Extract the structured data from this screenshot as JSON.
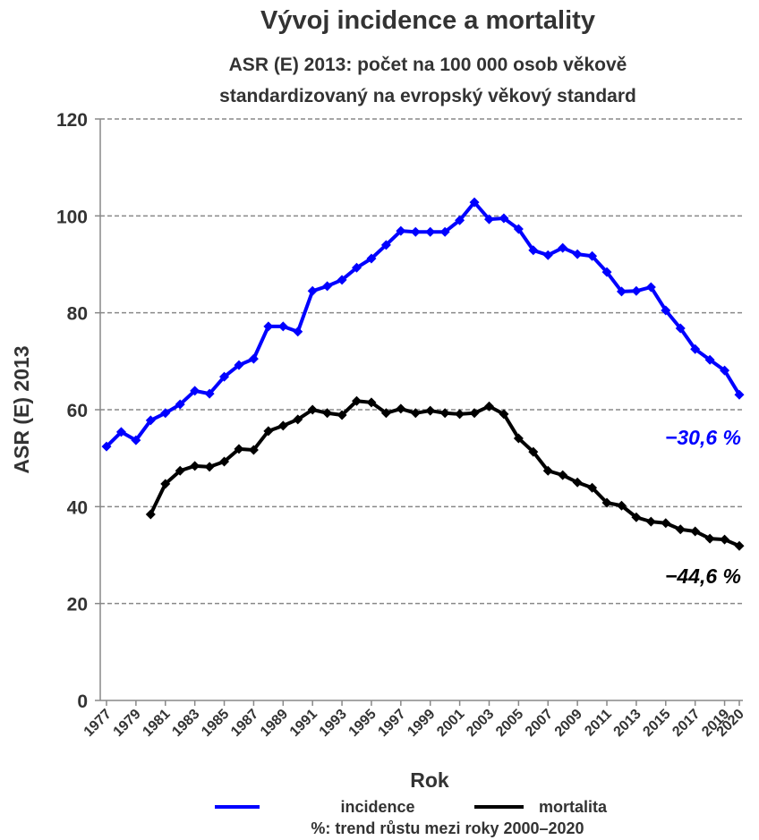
{
  "chart_data": {
    "type": "line",
    "title": "Vývoj incidence a mortality",
    "subtitle": [
      "ASR (E) 2013: počet na 100 000 osob věkově",
      "standardizovaný na evropský věkový standard"
    ],
    "x_label": "Rok",
    "y_label": "ASR (E) 2013",
    "x": [
      1977,
      1978,
      1979,
      1980,
      1981,
      1982,
      1983,
      1984,
      1985,
      1986,
      1987,
      1988,
      1989,
      1990,
      1991,
      1992,
      1993,
      1994,
      1995,
      1996,
      1997,
      1998,
      1999,
      2000,
      2001,
      2002,
      2003,
      2004,
      2005,
      2006,
      2007,
      2008,
      2009,
      2010,
      2011,
      2012,
      2013,
      2014,
      2015,
      2016,
      2017,
      2018,
      2019,
      2020
    ],
    "series": [
      {
        "name": "incidence",
        "color": "#0000ff",
        "values": [
          52.4,
          55.4,
          53.7,
          57.8,
          59.3,
          61.1,
          63.9,
          63.3,
          66.8,
          69.2,
          70.5,
          77.2,
          77.2,
          76.1,
          84.5,
          85.5,
          86.8,
          89.3,
          91.2,
          94.0,
          96.9,
          96.7,
          96.7,
          96.7,
          99.1,
          102.8,
          99.3,
          99.5,
          97.3,
          92.9,
          91.9,
          93.4,
          92.1,
          91.7,
          88.4,
          84.4,
          84.5,
          85.3,
          80.5,
          76.8,
          72.5,
          70.3,
          68.1,
          63.1
        ]
      },
      {
        "name": "mortalita",
        "color": "#000000",
        "values": [
          null,
          null,
          null,
          38.4,
          44.7,
          47.4,
          48.4,
          48.2,
          49.3,
          51.9,
          51.7,
          55.6,
          56.7,
          58.0,
          60.0,
          59.3,
          58.9,
          61.8,
          61.5,
          59.3,
          60.2,
          59.3,
          59.8,
          59.3,
          59.1,
          59.3,
          60.7,
          59.1,
          54.1,
          51.3,
          47.4,
          46.5,
          45.0,
          43.9,
          40.8,
          40.2,
          37.8,
          36.9,
          36.6,
          35.3,
          34.9,
          33.4,
          33.2,
          31.9
        ]
      }
    ],
    "annotations": [
      {
        "text": "−30,6 %",
        "color": "#0000ff"
      },
      {
        "text": "−44,6 %",
        "color": "#000000"
      }
    ],
    "note": "%: trend růstu mezi roky 2000–2020",
    "xlim": [
      1977,
      2020
    ],
    "xticks": [
      1977,
      1979,
      1981,
      1983,
      1985,
      1987,
      1989,
      1991,
      1993,
      1995,
      1997,
      1999,
      2001,
      2003,
      2005,
      2007,
      2009,
      2011,
      2013,
      2015,
      2017,
      2019,
      2020
    ],
    "ylim": [
      0,
      120
    ],
    "yticks": [
      0,
      20,
      40,
      60,
      80,
      100,
      120
    ],
    "grid": true
  }
}
